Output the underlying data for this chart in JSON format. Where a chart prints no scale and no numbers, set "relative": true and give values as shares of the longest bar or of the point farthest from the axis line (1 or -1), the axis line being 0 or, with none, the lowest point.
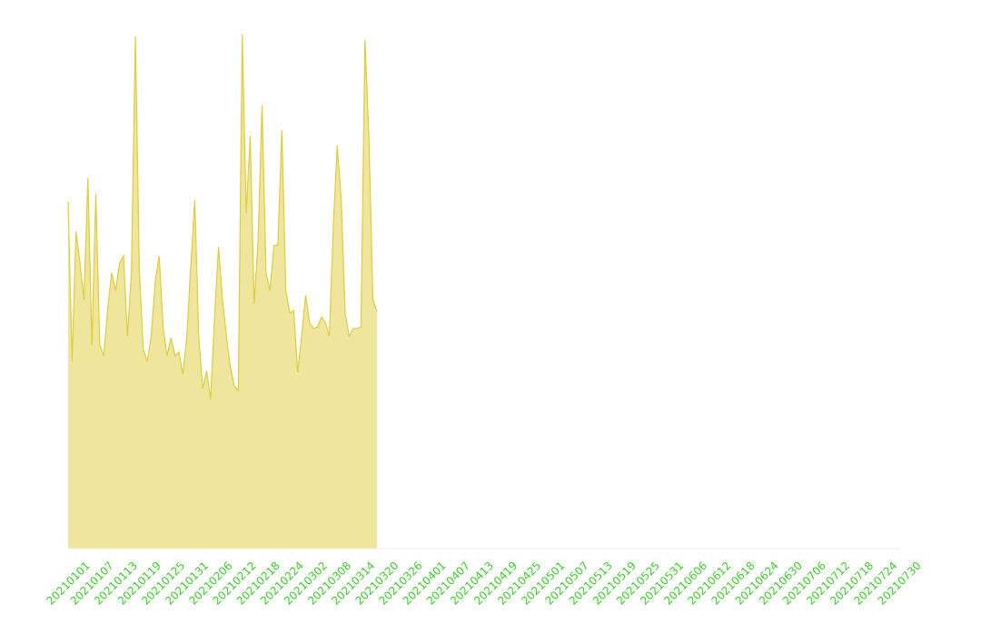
{
  "chart_data": {
    "type": "area",
    "relative": true,
    "grid": false,
    "legend": false,
    "categories": [
      "20210101",
      null,
      null,
      null,
      null,
      null,
      "20210107",
      null,
      null,
      null,
      null,
      null,
      "20210113",
      null,
      null,
      null,
      null,
      null,
      "20210119",
      null,
      null,
      null,
      null,
      null,
      "20210125",
      null,
      null,
      null,
      null,
      null,
      "20210131",
      null,
      null,
      null,
      null,
      null,
      "20210206",
      null,
      null,
      null,
      null,
      null,
      "20210212",
      null,
      null,
      null,
      null,
      null,
      "20210218",
      null,
      null,
      null,
      null,
      null,
      "20210224",
      null,
      null,
      null,
      null,
      null,
      "20210302",
      null,
      null,
      null,
      null,
      null,
      "20210308",
      null,
      null,
      null,
      null,
      null,
      "20210314",
      null,
      null,
      null,
      null,
      null,
      "20210320",
      null,
      null,
      null,
      null,
      null,
      "20210326",
      null,
      null,
      null,
      null,
      null,
      "20210401",
      null,
      null,
      null,
      null,
      null,
      "20210407",
      null,
      null,
      null,
      null,
      null,
      "20210413",
      null,
      null,
      null,
      null,
      null,
      "20210419",
      null,
      null,
      null,
      null,
      null,
      "20210425",
      null,
      null,
      null,
      null,
      null,
      "20210501",
      null,
      null,
      null,
      null,
      null,
      "20210507",
      null,
      null,
      null,
      null,
      null,
      "20210513",
      null,
      null,
      null,
      null,
      null,
      "20210519",
      null,
      null,
      null,
      null,
      null,
      "20210525",
      null,
      null,
      null,
      null,
      null,
      "20210531",
      null,
      null,
      null,
      null,
      null,
      "20210606",
      null,
      null,
      null,
      null,
      null,
      "20210612",
      null,
      null,
      null,
      null,
      null,
      "20210618",
      null,
      null,
      null,
      null,
      null,
      "20210624",
      null,
      null,
      null,
      null,
      null,
      "20210630",
      null,
      null,
      null,
      null,
      null,
      "20210706",
      null,
      null,
      null,
      null,
      null,
      "20210712",
      null,
      null,
      null,
      null,
      null,
      "20210718",
      null,
      null,
      null,
      null,
      null,
      "20210724",
      null,
      null,
      null,
      null,
      null,
      "20210730"
    ],
    "series": [
      {
        "color": "#e0cc3c",
        "values": [
          0.675,
          0.364,
          0.617,
          0.555,
          0.484,
          0.721,
          0.396,
          0.689,
          0.396,
          0.375,
          0.466,
          0.537,
          0.502,
          0.555,
          0.569,
          0.413,
          0.537,
          0.996,
          0.537,
          0.387,
          0.364,
          0.413,
          0.519,
          0.569,
          0.431,
          0.375,
          0.41,
          0.375,
          0.382,
          0.339,
          0.413,
          0.55,
          0.678,
          0.413,
          0.311,
          0.346,
          0.29,
          0.449,
          0.587,
          0.484,
          0.413,
          0.352,
          0.316,
          0.307,
          1.0,
          0.652,
          0.802,
          0.475,
          0.6,
          0.862,
          0.537,
          0.502,
          0.59,
          0.59,
          0.814,
          0.502,
          0.458,
          0.463,
          0.343,
          0.413,
          0.493,
          0.44,
          0.428,
          0.431,
          0.45,
          0.44,
          0.413,
          0.625,
          0.784,
          0.678,
          0.458,
          0.413,
          0.428,
          0.428,
          0.431,
          0.99,
          0.8,
          0.484,
          0.461,
          null,
          null,
          null,
          null,
          null,
          null,
          null,
          null,
          null,
          null,
          null,
          null,
          null,
          null,
          null,
          null,
          null,
          null,
          null,
          null,
          null,
          null,
          null,
          null,
          null,
          null,
          null,
          null,
          null,
          null,
          null,
          null,
          null,
          null,
          null,
          null,
          null,
          null,
          null,
          null,
          null,
          null,
          null,
          null,
          null,
          null,
          null,
          null,
          null,
          null,
          null,
          null,
          null,
          null,
          null,
          null,
          null,
          null,
          null,
          null,
          null,
          null,
          null,
          null,
          null,
          null,
          null,
          null,
          null,
          null,
          null,
          null,
          null,
          null,
          null,
          null,
          null,
          null,
          null,
          null,
          null,
          null,
          null,
          null,
          null,
          null,
          null,
          null,
          null,
          null,
          null,
          null,
          null,
          null,
          null,
          null,
          null,
          null,
          null,
          null,
          null,
          null,
          null,
          null,
          null,
          null,
          null,
          null,
          null,
          null,
          null,
          null,
          null,
          null,
          null,
          null,
          null,
          null,
          null,
          null,
          null,
          null,
          null,
          null,
          null,
          null,
          null,
          null,
          null,
          null,
          null,
          null
        ]
      }
    ]
  }
}
